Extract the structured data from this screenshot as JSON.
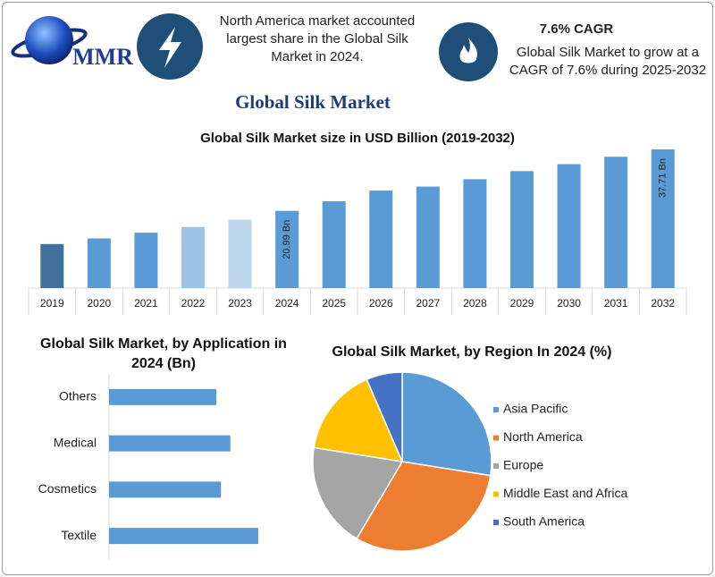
{
  "header": {
    "logo": "MMR",
    "note_left": "North America market accounted largest share in the Global Silk Market in 2024.",
    "cagr_title": "7.6% CAGR",
    "note_right": "Global Silk Market to grow at a CAGR of 7.6% during 2025-2032",
    "title": "Global Silk Market"
  },
  "chart_data": [
    {
      "type": "bar",
      "title": "Global Silk Market size in USD Billion (2019-2032)",
      "categories": [
        "2019",
        "2020",
        "2021",
        "2022",
        "2023",
        "2024",
        "2025",
        "2026",
        "2027",
        "2028",
        "2029",
        "2030",
        "2031",
        "2032"
      ],
      "values": [
        11.97,
        13.5,
        15.05,
        16.6,
        18.6,
        20.99,
        23.6,
        26.5,
        27.6,
        29.6,
        31.8,
        33.7,
        35.7,
        37.71
      ],
      "value_labels": [
        null,
        null,
        null,
        null,
        null,
        "20.99 Bn",
        null,
        null,
        null,
        null,
        null,
        null,
        null,
        "37.71 Bn"
      ],
      "colors": [
        "#41719c",
        "#5b9bd5",
        "#5b9bd5",
        "#9dc3e6",
        "#bdd7ee",
        "#5b9bd5",
        "#5b9bd5",
        "#5b9bd5",
        "#5b9bd5",
        "#5b9bd5",
        "#5b9bd5",
        "#5b9bd5",
        "#5b9bd5",
        "#5b9bd5"
      ]
    },
    {
      "type": "hbar",
      "title": "Global Silk Market, by Application in 2024 (Bn)",
      "categories": [
        "Others",
        "Medical",
        "Cosmetics",
        "Textile"
      ],
      "values": [
        4.6,
        5.2,
        4.8,
        6.4
      ],
      "color": "#5b9bd5"
    },
    {
      "type": "pie",
      "title": "Global Silk Market, by Region In 2024 (%)",
      "categories": [
        "Asia Pacific",
        "North America",
        "Europe",
        "Middle East and Africa",
        "South America"
      ],
      "values": [
        27.5,
        31,
        19,
        16,
        6.5
      ],
      "colors": [
        "#5b9bd5",
        "#ed7d31",
        "#a5a5a5",
        "#ffc000",
        "#4472c4"
      ],
      "legend": "right"
    }
  ]
}
